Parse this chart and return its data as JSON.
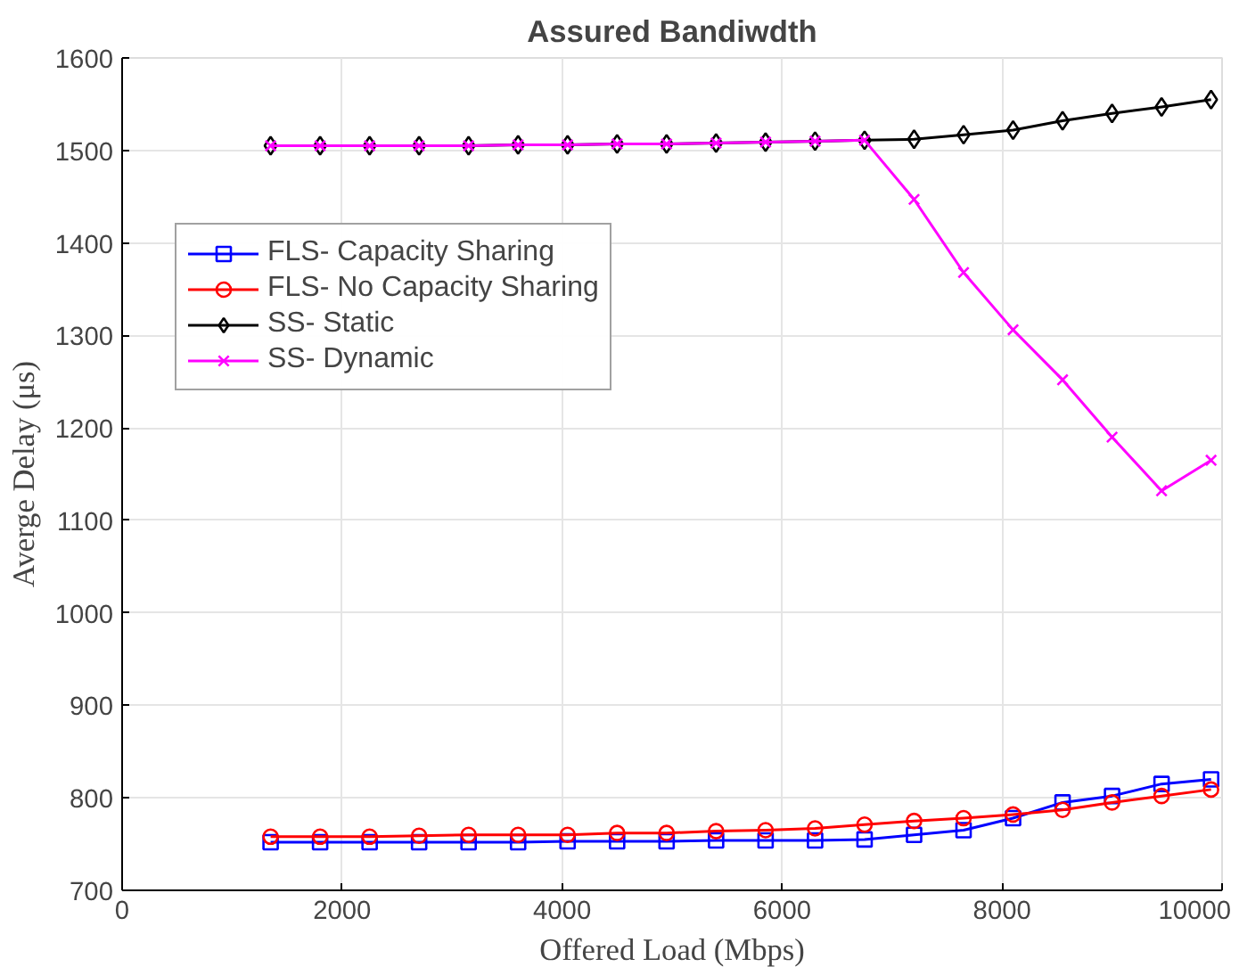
{
  "chart_data": {
    "type": "line",
    "title": "Assured Bandiwdth",
    "xlabel": "Offered Load (Mbps)",
    "ylabel": "Averge Delay (μs)",
    "x": [
      1350,
      1800,
      2250,
      2700,
      3150,
      3600,
      4050,
      4500,
      4950,
      5400,
      5850,
      6300,
      6750,
      7200,
      7650,
      8100,
      8550,
      9000,
      9450,
      9900
    ],
    "series": [
      {
        "name": "FLS- Capacity Sharing",
        "color": "#0000ff",
        "marker": "square",
        "values": [
          752,
          752,
          752,
          752,
          752,
          752,
          753,
          753,
          753,
          754,
          754,
          754,
          755,
          760,
          765,
          778,
          795,
          802,
          815,
          820
        ]
      },
      {
        "name": "FLS- No Capacity Sharing",
        "color": "#ff0000",
        "marker": "circle",
        "values": [
          758,
          758,
          758,
          759,
          760,
          760,
          760,
          762,
          762,
          764,
          765,
          767,
          771,
          775,
          778,
          782,
          787,
          795,
          802,
          809
        ]
      },
      {
        "name": "SS- Static",
        "color": "#000000",
        "marker": "diamond",
        "values": [
          1505,
          1505,
          1505,
          1505,
          1505,
          1506,
          1506,
          1507,
          1507,
          1508,
          1509,
          1510,
          1511,
          1512,
          1517,
          1522,
          1532,
          1540,
          1547,
          1555
        ]
      },
      {
        "name": "SS- Dynamic",
        "color": "#ff00ff",
        "marker": "cross",
        "values": [
          1505,
          1505,
          1505,
          1505,
          1505,
          1506,
          1506,
          1507,
          1507,
          1508,
          1509,
          1510,
          1511,
          1447,
          1368,
          1306,
          1252,
          1190,
          1132,
          1165
        ]
      }
    ],
    "xlim": [
      0,
      10000
    ],
    "xticks": [
      0,
      2000,
      4000,
      6000,
      8000,
      10000
    ],
    "ylim": [
      700,
      1600
    ],
    "yticks": [
      700,
      800,
      900,
      1000,
      1100,
      1200,
      1300,
      1400,
      1500,
      1600
    ],
    "grid": true,
    "legend": "top left",
    "line_style": "solid"
  }
}
